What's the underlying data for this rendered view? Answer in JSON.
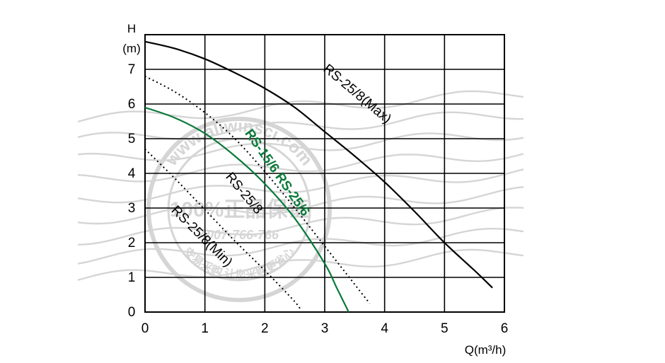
{
  "chart_data": {
    "type": "line",
    "xlabel": "Q(m³/h)",
    "ylabel_line1": "H",
    "ylabel_line2": "(m)",
    "xlim": [
      0,
      6
    ],
    "ylim": [
      0,
      8
    ],
    "x_ticks": [
      "0",
      "1",
      "2",
      "3",
      "4",
      "5",
      "6"
    ],
    "y_ticks": [
      "0",
      "1",
      "2",
      "3",
      "4",
      "5",
      "6",
      "7"
    ],
    "grid": true,
    "series": [
      {
        "name": "RS-25/8(Max)",
        "color": "#000000",
        "style": "solid",
        "x": [
          0,
          0.5,
          1,
          1.5,
          2,
          2.5,
          3,
          3.5,
          4,
          4.5,
          5,
          5.5,
          5.8
        ],
        "y": [
          7.8,
          7.6,
          7.3,
          6.9,
          6.45,
          5.9,
          5.2,
          4.5,
          3.75,
          2.9,
          2.0,
          1.2,
          0.7
        ]
      },
      {
        "name": "RS-15/6 RS-25/6",
        "color": "#0a7a3a",
        "style": "solid",
        "x": [
          0,
          0.5,
          1,
          1.5,
          2,
          2.5,
          3,
          3.2,
          3.4
        ],
        "y": [
          5.9,
          5.6,
          5.15,
          4.5,
          3.7,
          2.7,
          1.4,
          0.7,
          0.0
        ]
      },
      {
        "name": "RS-25/8",
        "color": "#000000",
        "style": "dotted",
        "x": [
          0,
          0.5,
          1,
          1.5,
          2,
          2.5,
          3,
          3.5,
          3.75
        ],
        "y": [
          6.8,
          6.35,
          5.75,
          5.0,
          4.05,
          3.0,
          1.9,
          0.8,
          0.25
        ]
      },
      {
        "name": "RS-25/8(Min)",
        "color": "#000000",
        "style": "dotted",
        "x": [
          0,
          0.5,
          1,
          1.5,
          2,
          2.5,
          2.6
        ],
        "y": [
          4.7,
          3.85,
          2.95,
          2.05,
          1.2,
          0.3,
          0.05
        ]
      }
    ],
    "annotations": [
      {
        "text": "RS-25/8(Max)",
        "x": 3.5,
        "y": 6.2,
        "angle": 40,
        "color": "#000000",
        "bold": false
      },
      {
        "text": "RS-15/6 RS-25/6",
        "x": 2.15,
        "y": 3.95,
        "angle": 55,
        "color": "#0a7a3a",
        "bold": true
      },
      {
        "text": "RS-25/8",
        "x": 1.6,
        "y": 3.35,
        "angle": 50,
        "color": "#000000",
        "bold": false
      },
      {
        "text": "RS-25/8(Min)",
        "x": 0.9,
        "y": 2.1,
        "angle": 45,
        "color": "#000000",
        "bold": false
      }
    ]
  },
  "watermark": {
    "color": "#b4b4b4",
    "top_text": "www.aliwinsci.com",
    "center_text": "100%正品保证",
    "phone_text": "4007-766-766",
    "bottom_text": "安易采购 让您采购更省心"
  }
}
